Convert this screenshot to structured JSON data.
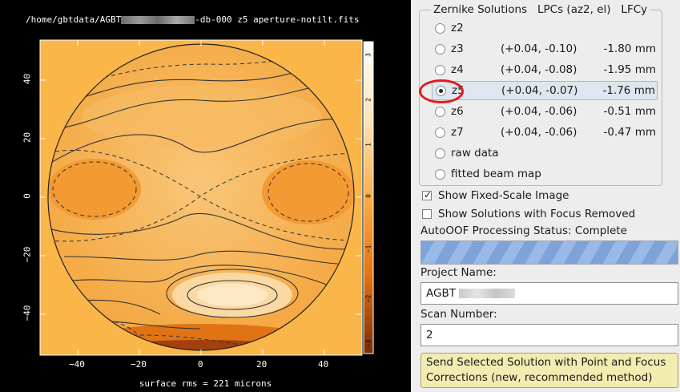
{
  "plot": {
    "title_prefix": "/home/gbtdata/AGBT",
    "title_suffix": "-db-000 z5 aperture-notilt.fits",
    "footer": "surface rms = 221 microns",
    "x_ticks": [
      "−40",
      "−20",
      "0",
      "20",
      "40"
    ],
    "y_ticks": [
      "40",
      "20",
      "0",
      "−20",
      "−40"
    ],
    "colorbar_ticks": [
      "3",
      "2",
      "1",
      "0",
      "−1",
      "−2",
      "−3"
    ],
    "colors": {
      "background": "#000000",
      "surface": "#f6a43a",
      "plot_area": "#fbb64a"
    }
  },
  "zernike": {
    "header": "Zernike Solutions   LPCs (az2, el)   LFCy",
    "selected": "z5",
    "rows": [
      {
        "name": "z2",
        "lpc": "",
        "lfcy": ""
      },
      {
        "name": "z3",
        "lpc": "(+0.04, -0.10)",
        "lfcy": "-1.80 mm"
      },
      {
        "name": "z4",
        "lpc": "(+0.04, -0.08)",
        "lfcy": "-1.95 mm"
      },
      {
        "name": "z5",
        "lpc": "(+0.04, -0.07)",
        "lfcy": "-1.76 mm"
      },
      {
        "name": "z6",
        "lpc": "(+0.04, -0.06)",
        "lfcy": "-0.51 mm"
      },
      {
        "name": "z7",
        "lpc": "(+0.04, -0.06)",
        "lfcy": "-0.47 mm"
      },
      {
        "name": "raw data",
        "lpc": "",
        "lfcy": ""
      },
      {
        "name": "fitted beam map",
        "lpc": "",
        "lfcy": ""
      }
    ]
  },
  "options": {
    "fixed_scale_label": "Show Fixed-Scale Image",
    "fixed_scale_checked": true,
    "focus_removed_label": "Show Solutions with Focus Removed",
    "focus_removed_checked": false
  },
  "status": {
    "label": "AutoOOF Processing Status: Complete",
    "progress_fraction": 1.0
  },
  "project": {
    "label": "Project Name:",
    "value_prefix": "AGBT"
  },
  "scan": {
    "label": "Scan Number:",
    "value": "2"
  },
  "send_button": {
    "line1": "Send Selected Solution with Point and Focus",
    "line2": "Corrections (new, recommended method)"
  }
}
